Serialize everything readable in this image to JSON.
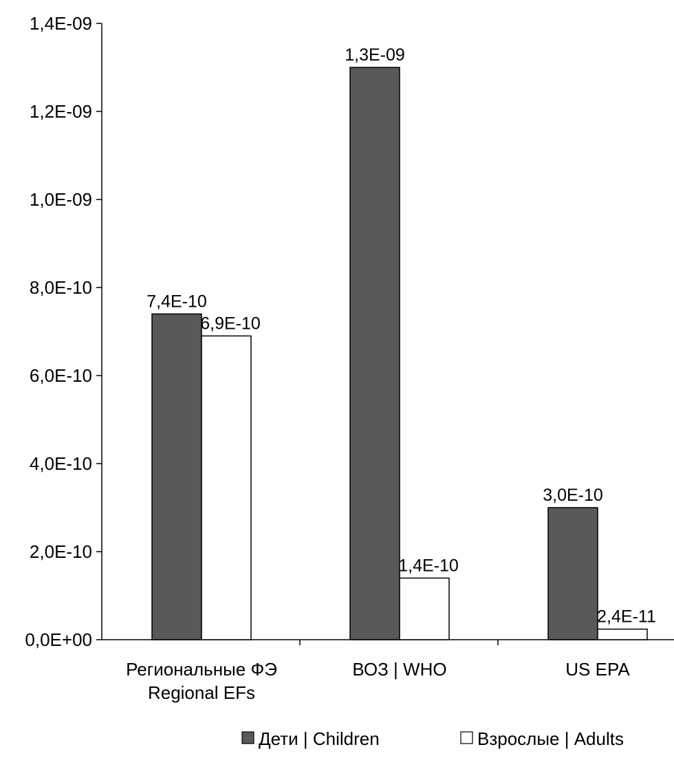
{
  "chart_data": {
    "type": "bar",
    "title": "",
    "xlabel": "",
    "ylabel": "",
    "categories": [
      [
        "Региональные ФЭ",
        "Regional EFs"
      ],
      [
        "ВОЗ | WHO"
      ],
      [
        "US EPA"
      ]
    ],
    "series": [
      {
        "name": "Дети | Children",
        "color": "#595959",
        "values": [
          7.4e-10,
          1.3e-09,
          3e-10
        ],
        "labels": [
          "7,4E-10",
          "1,3E-09",
          "3,0E-10"
        ]
      },
      {
        "name": "Взрослые | Adults",
        "color": "#ffffff",
        "values": [
          6.9e-10,
          1.4e-10,
          2.4e-11
        ],
        "labels": [
          "6,9E-10",
          "1,4E-10",
          "2,4E-11"
        ]
      }
    ],
    "ylim": [
      0,
      1.4e-09
    ],
    "yticks": [
      0,
      2e-10,
      4e-10,
      6e-10,
      8e-10,
      1e-09,
      1.2e-09,
      1.4e-09
    ],
    "ytick_labels": [
      "0,0E+00",
      "2,0E-10",
      "4,0E-10",
      "6,0E-10",
      "8,0E-10",
      "1,0E-09",
      "1,2E-09",
      "1,4E-09"
    ],
    "grid": false,
    "legend": "bottom"
  }
}
